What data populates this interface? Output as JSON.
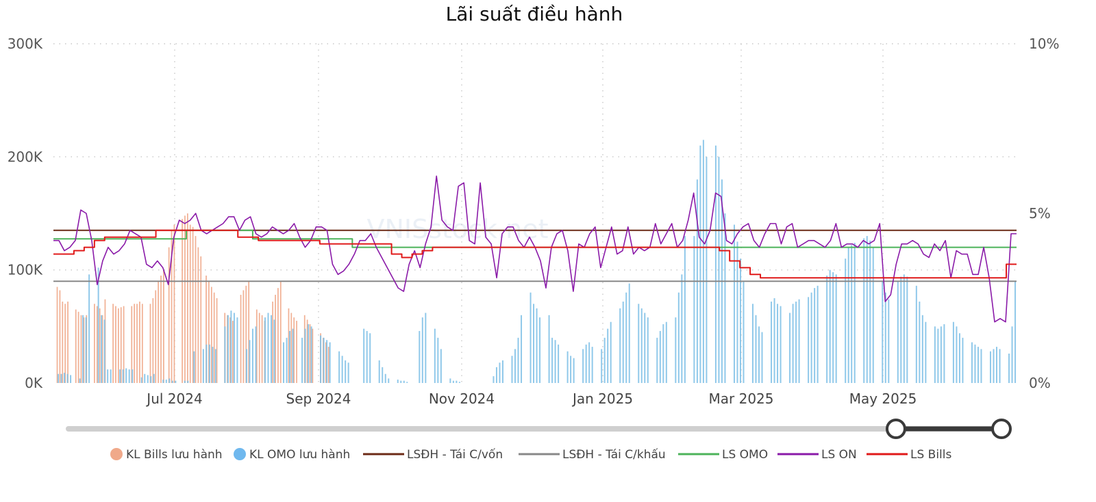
{
  "chart_data": {
    "type": "bar",
    "title": "Lãi suất điều hành",
    "x_ticks": [
      "Jul 2024",
      "Sep 2024",
      "Nov 2024",
      "Jan 2025",
      "Mar 2025",
      "May 2025"
    ],
    "y_left": {
      "ticks": [
        "0K",
        "100K",
        "200K",
        "300K"
      ],
      "range": [
        0,
        300000
      ]
    },
    "y_right": {
      "ticks": [
        "0%",
        "5%",
        "10%"
      ],
      "range": [
        0,
        10
      ]
    },
    "grid": true,
    "legend_position": "bottom",
    "bar_series": [
      {
        "name": "KL Bills lưu hành",
        "color": "#f0a98a",
        "note_units": "thousand",
        "values": [
          0,
          85,
          82,
          72,
          70,
          72,
          0,
          0,
          65,
          63,
          60,
          58,
          60,
          0,
          0,
          70,
          68,
          66,
          60,
          74,
          0,
          0,
          70,
          68,
          66,
          67,
          68,
          0,
          0,
          68,
          70,
          70,
          72,
          70,
          0,
          0,
          70,
          75,
          82,
          90,
          95,
          100,
          0,
          120,
          135,
          140,
          0,
          0,
          145,
          148,
          150,
          140,
          138,
          130,
          120,
          112,
          0,
          95,
          90,
          85,
          80,
          75,
          0,
          0,
          62,
          60,
          58,
          55,
          0,
          0,
          78,
          82,
          86,
          90,
          0,
          0,
          65,
          62,
          60,
          55,
          0,
          0,
          72,
          78,
          84,
          90,
          0,
          0,
          66,
          62,
          58,
          55,
          0,
          0,
          60,
          56,
          52,
          48,
          0,
          0,
          44,
          40,
          36,
          32,
          0,
          0,
          0,
          0,
          0,
          0,
          0,
          0,
          0,
          0,
          0,
          0,
          0,
          0,
          0,
          0,
          0,
          0,
          0,
          0,
          0,
          0,
          0,
          0,
          0,
          0,
          0,
          0,
          0,
          0,
          0,
          0,
          0,
          0,
          0,
          0,
          0,
          0,
          0,
          0,
          0,
          0,
          0,
          0,
          0,
          0,
          0,
          0,
          0,
          0,
          0,
          0,
          0,
          0,
          0,
          0,
          0,
          0,
          0,
          0,
          0,
          0,
          0,
          0,
          0,
          0,
          0,
          0,
          0,
          0,
          0,
          0,
          0,
          0,
          0,
          0,
          0,
          0,
          0,
          0,
          0,
          0,
          0,
          0,
          0,
          0,
          0,
          0,
          0,
          0,
          0,
          0,
          0,
          0,
          0,
          0,
          0,
          0,
          0,
          0,
          0,
          0,
          0,
          0,
          0,
          0,
          0,
          0,
          0,
          0,
          0,
          0,
          0,
          0,
          0,
          0,
          0,
          0,
          0,
          0,
          0,
          0,
          0,
          0,
          0,
          0,
          0,
          0,
          0,
          0,
          0,
          0,
          0,
          0,
          0,
          0,
          0,
          0,
          0,
          0,
          0,
          0,
          0,
          0,
          0,
          0,
          0,
          0,
          0,
          0,
          0,
          0,
          0,
          0,
          0,
          0,
          0,
          0,
          0,
          0,
          0,
          0,
          0,
          0,
          0,
          0,
          0,
          0,
          0,
          0,
          0,
          0,
          0,
          0,
          0,
          0,
          0,
          0,
          0,
          0,
          0,
          0,
          0,
          0,
          0,
          0,
          0,
          0,
          0,
          0,
          0,
          0,
          0,
          0,
          0,
          0,
          0,
          0,
          0,
          0,
          0,
          0,
          0,
          0,
          0,
          0,
          0,
          0,
          0,
          0,
          0,
          0,
          0,
          0,
          0,
          0,
          0,
          0,
          0,
          0,
          0,
          0,
          0,
          0,
          0,
          0,
          0,
          0,
          0,
          0,
          0,
          0,
          0,
          0,
          0,
          0,
          0,
          0,
          0,
          0,
          0,
          0,
          0,
          0,
          0,
          0,
          0,
          0,
          0,
          0,
          0,
          0,
          0,
          0,
          0,
          0,
          0,
          0
        ]
      },
      {
        "name": "KL OMO lưu hành",
        "color": "#7ebfe6",
        "values": [
          0,
          8,
          8,
          9,
          8,
          7,
          0,
          0,
          4,
          60,
          58,
          96,
          0,
          0,
          102,
          60,
          56,
          12,
          12,
          0,
          0,
          12,
          12,
          13,
          12,
          12,
          0,
          0,
          5,
          8,
          7,
          6,
          8,
          0,
          0,
          3,
          3,
          4,
          2,
          2,
          0,
          0,
          2,
          2,
          0,
          28,
          0,
          0,
          30,
          34,
          34,
          32,
          30,
          0,
          0,
          50,
          60,
          64,
          62,
          58,
          0,
          0,
          30,
          38,
          48,
          50,
          0,
          0,
          58,
          62,
          60,
          56,
          0,
          0,
          36,
          40,
          46,
          48,
          0,
          0,
          40,
          48,
          52,
          50,
          0,
          0,
          42,
          40,
          38,
          36,
          0,
          0,
          28,
          24,
          20,
          18,
          0,
          0,
          0,
          0,
          48,
          46,
          44,
          0,
          0,
          20,
          14,
          8,
          4,
          0,
          0,
          3,
          2,
          2,
          1,
          0,
          0,
          0,
          46,
          58,
          62,
          0,
          0,
          48,
          40,
          30,
          0,
          0,
          4,
          2,
          2,
          1,
          0,
          0,
          0,
          0,
          0,
          0,
          0,
          0,
          0,
          0,
          6,
          14,
          18,
          20,
          0,
          0,
          24,
          30,
          40,
          60,
          0,
          0,
          80,
          70,
          66,
          58,
          0,
          0,
          60,
          40,
          38,
          34,
          0,
          0,
          28,
          24,
          22,
          0,
          0,
          30,
          34,
          36,
          32,
          0,
          0,
          30,
          40,
          48,
          54,
          0,
          0,
          66,
          72,
          80,
          88,
          0,
          0,
          70,
          66,
          62,
          58,
          0,
          0,
          40,
          46,
          52,
          54,
          0,
          0,
          58,
          80,
          96,
          130,
          0,
          0,
          130,
          180,
          210,
          215,
          200,
          0,
          0,
          210,
          200,
          180,
          150,
          0,
          0,
          140,
          125,
          110,
          90,
          0,
          0,
          70,
          60,
          50,
          45,
          0,
          0,
          72,
          75,
          70,
          68,
          0,
          0,
          62,
          70,
          72,
          74,
          0,
          0,
          76,
          80,
          84,
          86,
          0,
          0,
          95,
          100,
          98,
          96,
          0,
          0,
          110,
          120,
          122,
          124,
          0,
          0,
          128,
          130,
          126,
          120,
          0,
          0,
          90,
          80,
          74,
          0,
          0,
          90,
          94,
          96,
          94,
          0,
          0,
          86,
          72,
          60,
          54,
          0,
          0,
          50,
          48,
          50,
          52,
          0,
          0,
          54,
          50,
          44,
          40,
          0,
          0,
          36,
          34,
          32,
          30,
          0,
          0,
          28,
          30,
          32,
          30,
          0,
          0,
          26,
          50,
          90
        ]
      }
    ],
    "line_series": [
      {
        "name": "LSĐH - Tái C/vốn",
        "color": "#6b2a16",
        "values": [
          4.5,
          4.5
        ]
      },
      {
        "name": "LSĐH - Tái C/khấu",
        "color": "#888888",
        "values": [
          3.0,
          3.0
        ]
      },
      {
        "name": "LS OMO",
        "color": "#4cb35a",
        "values": [
          4.25,
          4.25,
          4.25,
          4.25,
          4.5,
          4.5,
          4.25,
          4.25,
          4.25,
          4.0,
          4.0,
          4.0,
          4.0,
          4.0,
          4.0,
          4.0,
          4.0,
          4.0,
          4.0,
          4.0,
          4.0,
          4.0,
          4.0,
          4.0,
          4.0,
          4.0,
          4.0,
          4.0,
          4.0,
          4.0
        ]
      },
      {
        "name": "LS ON",
        "color": "#8a1aa8",
        "values": [
          4.2,
          4.2,
          3.9,
          4.0,
          4.2,
          5.1,
          5.0,
          4.2,
          2.9,
          3.6,
          4.0,
          3.8,
          3.9,
          4.1,
          4.5,
          4.4,
          4.3,
          3.5,
          3.4,
          3.6,
          3.4,
          2.9,
          4.3,
          4.8,
          4.7,
          4.8,
          5.0,
          4.5,
          4.4,
          4.5,
          4.6,
          4.7,
          4.9,
          4.9,
          4.5,
          4.8,
          4.9,
          4.4,
          4.3,
          4.4,
          4.6,
          4.5,
          4.4,
          4.5,
          4.7,
          4.3,
          4.0,
          4.2,
          4.6,
          4.6,
          4.5,
          3.5,
          3.2,
          3.3,
          3.5,
          3.8,
          4.2,
          4.2,
          4.4,
          4.0,
          3.7,
          3.4,
          3.1,
          2.8,
          2.7,
          3.5,
          3.9,
          3.4,
          4.1,
          4.6,
          6.1,
          4.8,
          4.6,
          4.5,
          5.8,
          5.9,
          4.2,
          4.1,
          5.9,
          4.3,
          4.1,
          3.1,
          4.4,
          4.6,
          4.6,
          4.2,
          4.0,
          4.3,
          4.0,
          3.6,
          2.8,
          4.0,
          4.4,
          4.5,
          3.9,
          2.7,
          4.1,
          4.0,
          4.4,
          4.6,
          3.4,
          4.0,
          4.6,
          3.8,
          3.9,
          4.6,
          3.8,
          4.0,
          3.9,
          4.0,
          4.7,
          4.1,
          4.4,
          4.7,
          4.0,
          4.2,
          4.8,
          5.6,
          4.3,
          4.1,
          4.5,
          5.6,
          5.5,
          4.2,
          4.1,
          4.4,
          4.6,
          4.7,
          4.2,
          4.0,
          4.4,
          4.7,
          4.7,
          4.1,
          4.6,
          4.7,
          4.0,
          4.1,
          4.2,
          4.2,
          4.1,
          4.0,
          4.2,
          4.7,
          4.0,
          4.1,
          4.1,
          4.0,
          4.2,
          4.1,
          4.2,
          4.7,
          2.4,
          2.6,
          3.5,
          4.1,
          4.1,
          4.2,
          4.1,
          3.8,
          3.7,
          4.1,
          3.9,
          4.2,
          3.1,
          3.9,
          3.8,
          3.8,
          3.2,
          3.2,
          4.0,
          3.1,
          1.8,
          1.9,
          1.8,
          4.4,
          4.4
        ]
      },
      {
        "name": "LS Bills",
        "color": "#e01919",
        "values": [
          3.8,
          3.8,
          3.9,
          4.0,
          4.2,
          4.3,
          4.3,
          4.3,
          4.3,
          4.3,
          4.5,
          4.5,
          4.5,
          4.5,
          4.5,
          4.5,
          4.5,
          4.5,
          4.3,
          4.3,
          4.2,
          4.2,
          4.2,
          4.2,
          4.2,
          4.2,
          4.1,
          4.1,
          4.1,
          4.1,
          4.1,
          4.1,
          4.1,
          3.8,
          3.7,
          3.8,
          3.9,
          4.0,
          4.0,
          4.0,
          4.0,
          4.0,
          4.0,
          4.0,
          4.0,
          4.0,
          4.0,
          4.0,
          4.0,
          4.0,
          4.0,
          4.0,
          4.0,
          4.0,
          4.0,
          4.0,
          4.0,
          4.0,
          4.0,
          4.0,
          4.0,
          4.0,
          4.0,
          4.0,
          4.0,
          3.9,
          3.6,
          3.4,
          3.2,
          3.1,
          3.1,
          3.1,
          3.1,
          3.1,
          3.1,
          3.1,
          3.1,
          3.1,
          3.1,
          3.1,
          3.1,
          3.1,
          3.1,
          3.1,
          3.1,
          3.1,
          3.1,
          3.1,
          3.1,
          3.1,
          3.1,
          3.1,
          3.1,
          3.5,
          3.5
        ]
      }
    ],
    "legend": [
      {
        "label": "KL Bills lưu hành",
        "type": "dot",
        "color": "#f0a98a"
      },
      {
        "label": "KL OMO lưu hành",
        "type": "dot",
        "color": "#6fb8ee"
      },
      {
        "label": "LSĐH - Tái C/vốn",
        "type": "line",
        "color": "#6b2a16"
      },
      {
        "label": "LSĐH - Tái C/khấu",
        "type": "line",
        "color": "#888888"
      },
      {
        "label": "LS OMO",
        "type": "line",
        "color": "#4cb35a"
      },
      {
        "label": "LS ON",
        "type": "line",
        "color": "#8a1aa8"
      },
      {
        "label": "LS Bills",
        "type": "line",
        "color": "#e01919"
      }
    ],
    "slider": {
      "range_start": 0.82,
      "range_end": 0.94
    },
    "watermark": "VNISstock.net"
  }
}
